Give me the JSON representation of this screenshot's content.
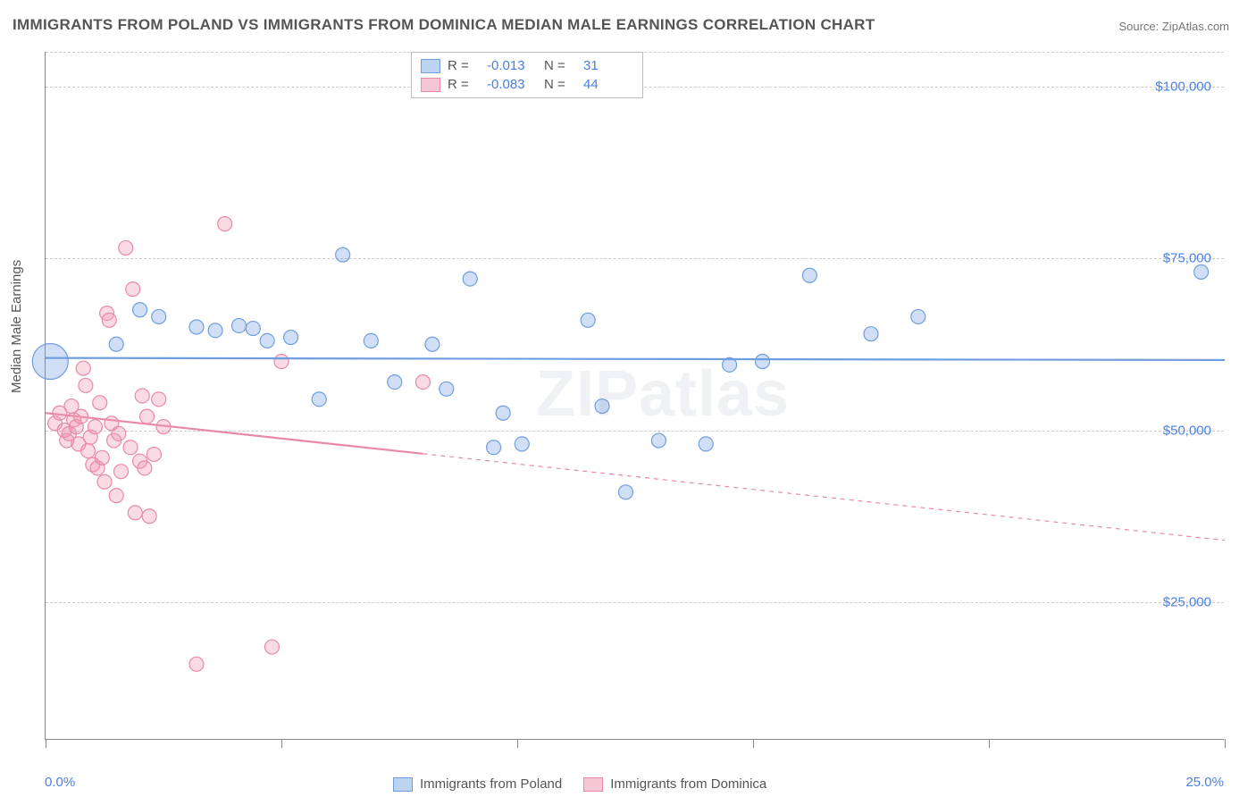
{
  "title": "IMMIGRANTS FROM POLAND VS IMMIGRANTS FROM DOMINICA MEDIAN MALE EARNINGS CORRELATION CHART",
  "source": "Source: ZipAtlas.com",
  "watermark": "ZIPatlas",
  "ylabel": "Median Male Earnings",
  "xaxis": {
    "min_label": "0.0%",
    "max_label": "25.0%",
    "min": 0,
    "max": 25,
    "tick_step": 5
  },
  "yaxis": {
    "min": 5000,
    "max": 105000,
    "ticks": [
      25000,
      50000,
      75000,
      100000
    ],
    "tick_labels": [
      "$25,000",
      "$50,000",
      "$75,000",
      "$100,000"
    ]
  },
  "grid_color": "#cccccc",
  "background_color": "#ffffff",
  "series": {
    "poland": {
      "label": "Immigrants from Poland",
      "color_fill": "rgba(120,160,230,0.35)",
      "color_stroke": "#6f9ee0",
      "swatch_fill": "#bcd3f2",
      "swatch_border": "#6f9ee0",
      "R": "-0.013",
      "N": "31",
      "trend": {
        "y_start": 60500,
        "y_end": 60200,
        "x_solid_end": 25
      },
      "points": [
        {
          "x": 0.1,
          "y": 60000,
          "r": 20
        },
        {
          "x": 1.5,
          "y": 62500,
          "r": 8
        },
        {
          "x": 2.0,
          "y": 67500,
          "r": 8
        },
        {
          "x": 2.4,
          "y": 66500,
          "r": 8
        },
        {
          "x": 3.2,
          "y": 65000,
          "r": 8
        },
        {
          "x": 3.6,
          "y": 64500,
          "r": 8
        },
        {
          "x": 4.1,
          "y": 65200,
          "r": 8
        },
        {
          "x": 4.4,
          "y": 64800,
          "r": 8
        },
        {
          "x": 4.7,
          "y": 63000,
          "r": 8
        },
        {
          "x": 5.2,
          "y": 63500,
          "r": 8
        },
        {
          "x": 5.8,
          "y": 54500,
          "r": 8
        },
        {
          "x": 6.3,
          "y": 75500,
          "r": 8
        },
        {
          "x": 6.9,
          "y": 63000,
          "r": 8
        },
        {
          "x": 7.4,
          "y": 57000,
          "r": 8
        },
        {
          "x": 8.2,
          "y": 62500,
          "r": 8
        },
        {
          "x": 8.5,
          "y": 56000,
          "r": 8
        },
        {
          "x": 9.0,
          "y": 72000,
          "r": 8
        },
        {
          "x": 9.5,
          "y": 47500,
          "r": 8
        },
        {
          "x": 9.7,
          "y": 52500,
          "r": 8
        },
        {
          "x": 10.1,
          "y": 48000,
          "r": 8
        },
        {
          "x": 11.5,
          "y": 66000,
          "r": 8
        },
        {
          "x": 11.8,
          "y": 53500,
          "r": 8
        },
        {
          "x": 12.3,
          "y": 41000,
          "r": 8
        },
        {
          "x": 13.0,
          "y": 48500,
          "r": 8
        },
        {
          "x": 14.0,
          "y": 48000,
          "r": 8
        },
        {
          "x": 14.5,
          "y": 59500,
          "r": 8
        },
        {
          "x": 16.2,
          "y": 72500,
          "r": 8
        },
        {
          "x": 17.5,
          "y": 64000,
          "r": 8
        },
        {
          "x": 18.5,
          "y": 66500,
          "r": 8
        },
        {
          "x": 24.5,
          "y": 73000,
          "r": 8
        },
        {
          "x": 15.2,
          "y": 60000,
          "r": 8
        }
      ]
    },
    "dominica": {
      "label": "Immigrants from Dominica",
      "color_fill": "rgba(240,150,175,0.35)",
      "color_stroke": "#e88aa5",
      "swatch_fill": "#f5c7d4",
      "swatch_border": "#e88aa5",
      "R": "-0.083",
      "N": "44",
      "trend": {
        "y_start": 52500,
        "y_end": 34000,
        "x_solid_end": 8.0
      },
      "points": [
        {
          "x": 0.2,
          "y": 51000,
          "r": 8
        },
        {
          "x": 0.3,
          "y": 52500,
          "r": 8
        },
        {
          "x": 0.4,
          "y": 50000,
          "r": 8
        },
        {
          "x": 0.45,
          "y": 48500,
          "r": 8
        },
        {
          "x": 0.5,
          "y": 49500,
          "r": 8
        },
        {
          "x": 0.55,
          "y": 53500,
          "r": 8
        },
        {
          "x": 0.6,
          "y": 51500,
          "r": 8
        },
        {
          "x": 0.65,
          "y": 50500,
          "r": 8
        },
        {
          "x": 0.7,
          "y": 48000,
          "r": 8
        },
        {
          "x": 0.75,
          "y": 52000,
          "r": 8
        },
        {
          "x": 0.8,
          "y": 59000,
          "r": 8
        },
        {
          "x": 0.85,
          "y": 56500,
          "r": 8
        },
        {
          "x": 0.9,
          "y": 47000,
          "r": 8
        },
        {
          "x": 0.95,
          "y": 49000,
          "r": 8
        },
        {
          "x": 1.0,
          "y": 45000,
          "r": 8
        },
        {
          "x": 1.05,
          "y": 50500,
          "r": 8
        },
        {
          "x": 1.1,
          "y": 44500,
          "r": 8
        },
        {
          "x": 1.15,
          "y": 54000,
          "r": 8
        },
        {
          "x": 1.2,
          "y": 46000,
          "r": 8
        },
        {
          "x": 1.25,
          "y": 42500,
          "r": 8
        },
        {
          "x": 1.3,
          "y": 67000,
          "r": 8
        },
        {
          "x": 1.35,
          "y": 66000,
          "r": 8
        },
        {
          "x": 1.4,
          "y": 51000,
          "r": 8
        },
        {
          "x": 1.45,
          "y": 48500,
          "r": 8
        },
        {
          "x": 1.5,
          "y": 40500,
          "r": 8
        },
        {
          "x": 1.6,
          "y": 44000,
          "r": 8
        },
        {
          "x": 1.7,
          "y": 76500,
          "r": 8
        },
        {
          "x": 1.8,
          "y": 47500,
          "r": 8
        },
        {
          "x": 1.85,
          "y": 70500,
          "r": 8
        },
        {
          "x": 1.9,
          "y": 38000,
          "r": 8
        },
        {
          "x": 2.0,
          "y": 45500,
          "r": 8
        },
        {
          "x": 2.05,
          "y": 55000,
          "r": 8
        },
        {
          "x": 2.1,
          "y": 44500,
          "r": 8
        },
        {
          "x": 2.2,
          "y": 37500,
          "r": 8
        },
        {
          "x": 2.3,
          "y": 46500,
          "r": 8
        },
        {
          "x": 2.4,
          "y": 54500,
          "r": 8
        },
        {
          "x": 2.5,
          "y": 50500,
          "r": 8
        },
        {
          "x": 3.2,
          "y": 16000,
          "r": 8
        },
        {
          "x": 3.8,
          "y": 80000,
          "r": 8
        },
        {
          "x": 4.8,
          "y": 18500,
          "r": 8
        },
        {
          "x": 5.0,
          "y": 60000,
          "r": 8
        },
        {
          "x": 2.15,
          "y": 52000,
          "r": 8
        },
        {
          "x": 1.55,
          "y": 49500,
          "r": 8
        },
        {
          "x": 8.0,
          "y": 57000,
          "r": 8
        }
      ]
    }
  },
  "legend_top": {
    "R_label": "R  =",
    "N_label": "N  ="
  }
}
